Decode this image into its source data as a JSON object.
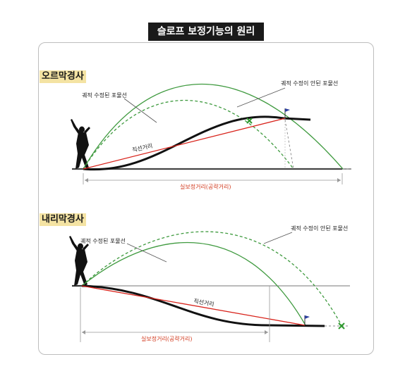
{
  "title": "슬로프 보정기능의 원리",
  "uphill": {
    "tag": "오르막경사",
    "label_corrected": "궤적 수정된 포물선",
    "label_uncorrected": "궤적 수정이 안된 포물선",
    "label_straight": "직선거리",
    "label_distance": "실보정거리(공략거리)"
  },
  "downhill": {
    "tag": "내리막경사",
    "label_corrected": "궤적 수정된 포물선",
    "label_uncorrected": "궤적 수정이 안된 포물선",
    "label_straight": "직선거리",
    "label_distance": "실보정거리(공략거리)"
  },
  "colors": {
    "green": "#3f9a3f",
    "red": "#d8221a",
    "black": "#111111",
    "flag": "#2b3f9e",
    "x_mark": "#2f9a2f"
  },
  "icons": [
    "golfer-icon",
    "flag-icon",
    "x-mark-icon"
  ]
}
